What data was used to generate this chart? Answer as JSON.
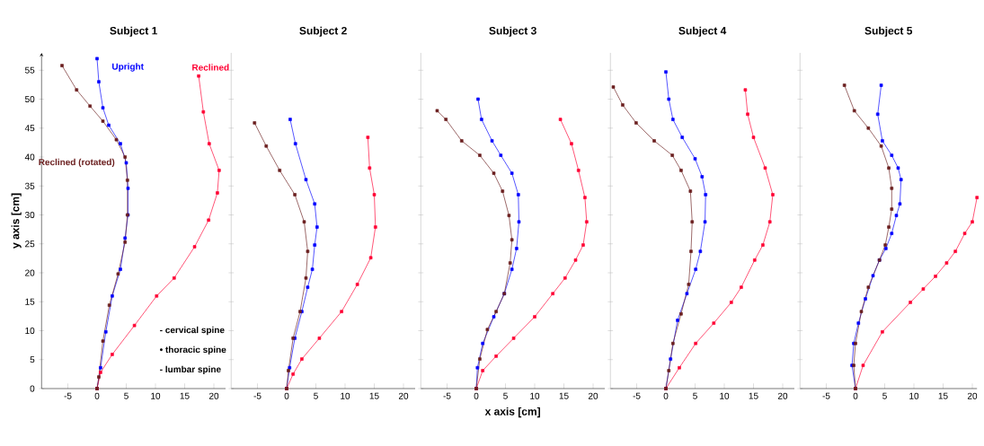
{
  "chart_data": [
    {
      "type": "line",
      "title": "Subject 1",
      "ylabel": "y axis [cm]",
      "xlim": [
        -9.5,
        22
      ],
      "ylim": [
        0,
        58
      ],
      "xticks": [
        -5,
        0,
        5,
        10,
        15,
        20
      ],
      "yticks": [
        0,
        5,
        10,
        15,
        20,
        25,
        30,
        35,
        40,
        45,
        50,
        55
      ],
      "marker": "square",
      "line_style": "solid",
      "annotations": [
        "- cervical spine",
        "• thoracic spine",
        "- lumbar spine"
      ],
      "series": [
        {
          "name": "Upright",
          "color": "#0000ff",
          "x": [
            0,
            0.3,
            1,
            2,
            4,
            5,
            5.3,
            5.3,
            4.8,
            4,
            2.6,
            1.5,
            0.6,
            0
          ],
          "values": [
            57,
            53,
            48.5,
            45.5,
            42.3,
            39,
            34.6,
            30,
            26,
            20.6,
            16,
            9.8,
            3.6,
            0
          ]
        },
        {
          "name": "Reclined",
          "color": "#ff0033",
          "x": [
            17.4,
            18.2,
            19.2,
            20.9,
            20.6,
            19.1,
            16.7,
            13.2,
            10.2,
            6.4,
            2.6,
            0.6,
            0
          ],
          "values": [
            54,
            47.8,
            42.3,
            37.7,
            33.8,
            29.1,
            24.5,
            19.1,
            16,
            10.9,
            5.9,
            2.8,
            0
          ]
        },
        {
          "name": "Reclined (rotated)",
          "color": "#6b1f1f",
          "x": [
            -6,
            -3.5,
            -1.2,
            1,
            3.3,
            4.8,
            5.2,
            5.2,
            4.8,
            3.6,
            2.1,
            1,
            0.3,
            0
          ],
          "values": [
            55.8,
            51.6,
            48.8,
            46.2,
            43,
            40,
            36,
            30,
            25.3,
            19.8,
            14.4,
            8.2,
            2,
            0
          ]
        }
      ]
    },
    {
      "type": "line",
      "title": "Subject 2",
      "xlim": [
        -9.5,
        22
      ],
      "ylim": [
        0,
        58
      ],
      "yticks": [
        0,
        5,
        10,
        15,
        20,
        25,
        30,
        35,
        40,
        45,
        50,
        55
      ],
      "xticks": [
        -5,
        0,
        5,
        10,
        15,
        20
      ],
      "tick_labels": "x",
      "marker": "square",
      "line_style": "solid",
      "series": [
        {
          "color": "#0000ff",
          "x": [
            0.6,
            1.5,
            3.3,
            4.8,
            5.2,
            4.8,
            4.4,
            3.6,
            2.6,
            1.4,
            0.5,
            0
          ],
          "values": [
            46.5,
            42.3,
            36.1,
            31.9,
            27.9,
            24.8,
            20.6,
            17.5,
            13.3,
            8.7,
            3.6,
            0
          ]
        },
        {
          "color": "#ff0033",
          "x": [
            13.9,
            14.2,
            15,
            15.2,
            14.4,
            12.1,
            9.4,
            5.6,
            2.6,
            1.1,
            0
          ],
          "values": [
            43.4,
            38.1,
            33.5,
            27.9,
            22.6,
            18,
            13.3,
            8.7,
            5.1,
            2.5,
            0
          ]
        },
        {
          "color": "#6b1f1f",
          "x": [
            -5.5,
            -3.5,
            -1.2,
            1.4,
            3,
            3.6,
            3.3,
            2.3,
            1.1,
            0.3,
            0
          ],
          "values": [
            45.9,
            41.9,
            37.7,
            33.5,
            28.8,
            23.7,
            19.1,
            13.3,
            8.7,
            3.1,
            0
          ]
        }
      ]
    },
    {
      "type": "line",
      "title": "Subject 3",
      "xlabel": "x axis [cm]",
      "xlim": [
        -9.5,
        22
      ],
      "ylim": [
        0,
        58
      ],
      "yticks": [
        0,
        5,
        10,
        15,
        20,
        25,
        30,
        35,
        40,
        45,
        50,
        55
      ],
      "xticks": [
        -5,
        0,
        5,
        10,
        15,
        20
      ],
      "tick_labels": "x",
      "marker": "square",
      "line_style": "solid",
      "series": [
        {
          "color": "#0000ff",
          "x": [
            0.3,
            0.9,
            2.7,
            4.2,
            6.1,
            7.2,
            7.3,
            6.9,
            6.1,
            4.8,
            3,
            1.1,
            0.2,
            0
          ],
          "values": [
            50,
            46.5,
            42.8,
            40.3,
            37.2,
            33.5,
            28.8,
            24.2,
            20.6,
            16.4,
            12.4,
            7.8,
            3.6,
            0
          ]
        },
        {
          "color": "#ff0033",
          "x": [
            14.4,
            16.3,
            17.5,
            18.6,
            18.9,
            18.3,
            17,
            15.2,
            13.1,
            10,
            6.4,
            3.4,
            1.1,
            0
          ],
          "values": [
            46.5,
            42.3,
            37.7,
            33,
            28.8,
            24.8,
            22.2,
            19.1,
            16.4,
            12.4,
            8.7,
            5.6,
            3.1,
            0
          ]
        },
        {
          "color": "#6b1f1f",
          "x": [
            -6.7,
            -5.2,
            -2.5,
            0.6,
            3,
            4.5,
            5.6,
            6.1,
            5.8,
            4.8,
            3.4,
            1.9,
            0.6,
            0
          ],
          "values": [
            48,
            46.5,
            42.8,
            40.3,
            37.2,
            34.1,
            29.9,
            25.7,
            21.7,
            16.4,
            13.3,
            10.2,
            5.1,
            0
          ]
        }
      ]
    },
    {
      "type": "line",
      "title": "Subject 4",
      "xlim": [
        -9.5,
        22
      ],
      "ylim": [
        0,
        58
      ],
      "yticks": [
        0,
        5,
        10,
        15,
        20,
        25,
        30,
        35,
        40,
        45,
        50,
        55
      ],
      "xticks": [
        -5,
        0,
        5,
        10,
        15,
        20
      ],
      "tick_labels": "x",
      "marker": "square",
      "line_style": "solid",
      "series": [
        {
          "color": "#0000ff",
          "x": [
            0,
            0.5,
            1.2,
            2.8,
            5,
            6.2,
            6.8,
            6.7,
            5.9,
            5.1,
            3.6,
            2,
            0.8,
            0
          ],
          "values": [
            54.7,
            50,
            46.5,
            43.4,
            39.7,
            36.6,
            33.5,
            28.8,
            23.7,
            20.6,
            16.4,
            11.8,
            5.1,
            0
          ]
        },
        {
          "color": "#ff0033",
          "x": [
            13.6,
            14,
            15,
            17,
            18.3,
            17.8,
            16.6,
            15.2,
            12.9,
            11.2,
            8.2,
            5.1,
            2.3,
            0
          ],
          "values": [
            51.6,
            47.4,
            43.4,
            38.1,
            33.5,
            28.8,
            24.8,
            22.2,
            17.5,
            14.9,
            11.3,
            7.8,
            3.6,
            0
          ]
        },
        {
          "color": "#6b1f1f",
          "x": [
            -9,
            -7.4,
            -5.1,
            -2,
            1.1,
            2.6,
            4.2,
            4.5,
            4.3,
            3.9,
            2.6,
            1.2,
            0.5,
            0
          ],
          "values": [
            52.1,
            49,
            45.9,
            42.8,
            40.3,
            37.7,
            34.1,
            28.8,
            23.7,
            18,
            12.9,
            7.8,
            3.1,
            0
          ]
        }
      ]
    },
    {
      "type": "line",
      "title": "Subject 5",
      "xlim": [
        -9.5,
        20.8
      ],
      "ylim": [
        0,
        58
      ],
      "yticks": [
        0,
        5,
        10,
        15,
        20,
        25,
        30,
        35,
        40,
        45,
        50,
        55
      ],
      "xticks": [
        -5,
        0,
        5,
        10,
        15,
        20
      ],
      "tick_labels": "x",
      "marker": "square",
      "line_style": "solid",
      "series": [
        {
          "color": "#0000ff",
          "x": [
            4.4,
            3.8,
            4.6,
            6.2,
            7.3,
            7.8,
            7.6,
            7,
            6.2,
            5.2,
            4.1,
            3,
            1.7,
            0.5,
            -0.3,
            -0.6,
            0
          ],
          "values": [
            52.4,
            47.4,
            42.8,
            40.3,
            38.1,
            36.1,
            31.9,
            29.9,
            26.8,
            24.2,
            22.2,
            19.5,
            15.5,
            11.3,
            7.8,
            4,
            0
          ]
        },
        {
          "color": "#ff0033",
          "x": [
            20.8,
            20,
            18.7,
            17.1,
            15.6,
            13.7,
            11.6,
            9.4,
            4.6,
            1.3,
            0
          ],
          "values": [
            33,
            28.8,
            26.8,
            23.7,
            21.7,
            19.4,
            17.2,
            14.9,
            9.8,
            4,
            0
          ]
        },
        {
          "color": "#6b1f1f",
          "x": [
            -1.9,
            -0.2,
            2.2,
            4.4,
            5.7,
            6.2,
            6.2,
            5.7,
            5.1,
            4.1,
            2.2,
            1,
            0,
            -0.3,
            0
          ],
          "values": [
            52.4,
            48,
            45,
            41.9,
            38.1,
            34.6,
            31,
            27.9,
            24.8,
            22.2,
            17.5,
            13.3,
            7.8,
            4,
            0
          ]
        }
      ]
    }
  ]
}
